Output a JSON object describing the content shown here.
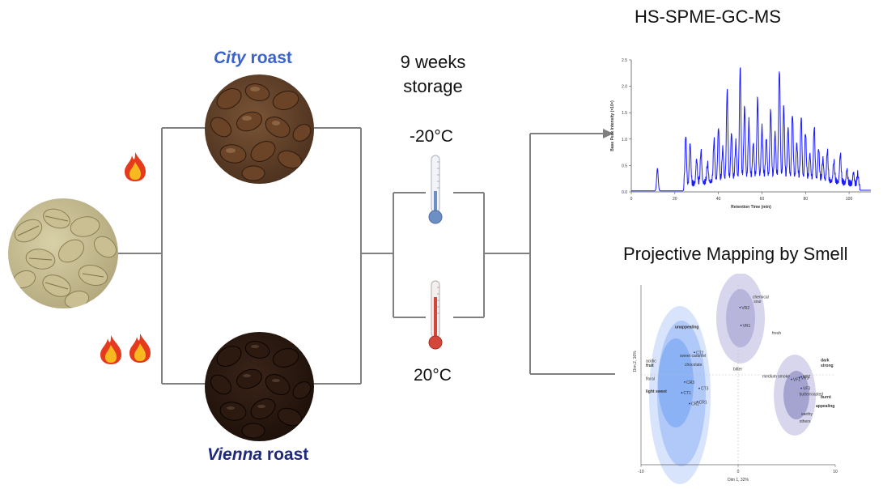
{
  "labels": {
    "city_prefix": "City",
    "city_suffix": " roast",
    "vienna_prefix": "Vienna",
    "vienna_suffix": " roast",
    "storage_line1": "9 weeks",
    "storage_line2": "storage",
    "temp_cold": "-20°C",
    "temp_warm": "20°C",
    "gcms_title": "HS-SPME-GC-MS",
    "pm_title": "Projective Mapping by Smell"
  },
  "colors": {
    "city": "#3c63c9",
    "vienna": "#1f2a7a",
    "line": "#808080",
    "chromatogram": "#1a1aff",
    "ellipse_blue": "#4a86f0",
    "ellipse_purple": "#7a78c0"
  },
  "chart_data": [
    {
      "type": "line",
      "xlabel": "Retention Time (min)",
      "ylabel": "Base Peak Intensity (×10⁸)",
      "xlim": [
        0,
        110
      ],
      "ylim": [
        0,
        2.5
      ],
      "x_ticks": [
        "0",
        "20",
        "40",
        "60",
        "80",
        "100"
      ],
      "y_ticks": [
        "0.0",
        "0.5",
        "1.0",
        "1.5",
        "2.0",
        "2.5"
      ],
      "peaks": [
        {
          "x": 12,
          "y": 0.45
        },
        {
          "x": 25,
          "y": 1.05
        },
        {
          "x": 27,
          "y": 0.9
        },
        {
          "x": 30,
          "y": 0.6
        },
        {
          "x": 32,
          "y": 0.75
        },
        {
          "x": 35,
          "y": 0.5
        },
        {
          "x": 38,
          "y": 0.95
        },
        {
          "x": 40,
          "y": 1.2
        },
        {
          "x": 42,
          "y": 0.8
        },
        {
          "x": 44,
          "y": 1.9
        },
        {
          "x": 46,
          "y": 1.1
        },
        {
          "x": 48,
          "y": 0.9
        },
        {
          "x": 50,
          "y": 2.35
        },
        {
          "x": 52,
          "y": 1.6
        },
        {
          "x": 54,
          "y": 1.3
        },
        {
          "x": 56,
          "y": 0.9
        },
        {
          "x": 58,
          "y": 1.75
        },
        {
          "x": 60,
          "y": 1.2
        },
        {
          "x": 62,
          "y": 1.0
        },
        {
          "x": 64,
          "y": 1.5
        },
        {
          "x": 66,
          "y": 1.1
        },
        {
          "x": 68,
          "y": 2.3
        },
        {
          "x": 70,
          "y": 1.6
        },
        {
          "x": 72,
          "y": 1.2
        },
        {
          "x": 74,
          "y": 1.45
        },
        {
          "x": 76,
          "y": 0.9
        },
        {
          "x": 78,
          "y": 1.4
        },
        {
          "x": 80,
          "y": 1.1
        },
        {
          "x": 82,
          "y": 0.7
        },
        {
          "x": 84,
          "y": 1.2
        },
        {
          "x": 86,
          "y": 0.8
        },
        {
          "x": 88,
          "y": 0.6
        },
        {
          "x": 90,
          "y": 0.75
        },
        {
          "x": 93,
          "y": 0.55
        },
        {
          "x": 96,
          "y": 0.7
        },
        {
          "x": 99,
          "y": 0.4
        },
        {
          "x": 102,
          "y": 0.35
        },
        {
          "x": 104,
          "y": 0.3
        }
      ]
    },
    {
      "type": "scatter",
      "xlabel": "Dim 1, 32%",
      "ylabel": "Dim 2, 16%",
      "xlim": [
        -10,
        10
      ],
      "ylim": [
        -10,
        10
      ],
      "x_ticks": [
        "-10",
        "0",
        "10"
      ],
      "points": [
        {
          "label": "VR2",
          "x": 0.2,
          "y": 7.5
        },
        {
          "label": "VR1",
          "x": 0.3,
          "y": 5.5
        },
        {
          "label": "CT2",
          "x": -4.5,
          "y": 2.5
        },
        {
          "label": "CR3",
          "x": -5.5,
          "y": -0.8
        },
        {
          "label": "CT3",
          "x": -4.0,
          "y": -1.5
        },
        {
          "label": "CT1",
          "x": -5.8,
          "y": -2.0
        },
        {
          "label": "CR1",
          "x": -4.2,
          "y": -3.0
        },
        {
          "label": "CR2",
          "x": -5.0,
          "y": -3.2
        },
        {
          "label": "VF1",
          "x": 5.5,
          "y": -0.5
        },
        {
          "label": "VR3",
          "x": 6.3,
          "y": -0.3
        },
        {
          "label": "VF3",
          "x": 6.5,
          "y": -1.5
        },
        {
          "label": "VF2",
          "x": 6.5,
          "y": -0.2
        }
      ],
      "descriptors": [
        {
          "label": "chemical",
          "x": 1.5,
          "y": 8.5,
          "bold": false
        },
        {
          "label": "sour",
          "x": 1.6,
          "y": 8.0,
          "bold": false
        },
        {
          "label": "fresh",
          "x": 3.5,
          "y": 4.5,
          "bold": false
        },
        {
          "label": "unappealing",
          "x": -6.5,
          "y": 5.2,
          "bold": true
        },
        {
          "label": "sweet caramel",
          "x": -6.0,
          "y": 2.0,
          "bold": false
        },
        {
          "label": "chocolate",
          "x": -5.5,
          "y": 1.0,
          "bold": false
        },
        {
          "label": "acidic",
          "x": -9.5,
          "y": 1.4,
          "bold": false
        },
        {
          "label": "fruit",
          "x": -9.5,
          "y": 0.9,
          "bold": true
        },
        {
          "label": "bitter",
          "x": -0.5,
          "y": 0.5,
          "bold": false
        },
        {
          "label": "floral",
          "x": -9.5,
          "y": -0.6,
          "bold": false
        },
        {
          "label": "light sweet",
          "x": -9.5,
          "y": -2.0,
          "bold": true
        },
        {
          "label": "medium smoke",
          "x": 2.5,
          "y": -0.3,
          "bold": false
        },
        {
          "label": "dark",
          "x": 8.5,
          "y": 1.5,
          "bold": true
        },
        {
          "label": "strong",
          "x": 8.5,
          "y": 0.9,
          "bold": true
        },
        {
          "label": "butterroasted",
          "x": 6.3,
          "y": -2.3,
          "bold": false
        },
        {
          "label": "burnt",
          "x": 8.5,
          "y": -2.6,
          "bold": true
        },
        {
          "label": "appealing",
          "x": 8.0,
          "y": -3.6,
          "bold": true
        },
        {
          "label": "earthy",
          "x": 6.5,
          "y": -4.5,
          "bold": false
        },
        {
          "label": "others",
          "x": 6.3,
          "y": -5.3,
          "bold": false
        }
      ]
    }
  ]
}
